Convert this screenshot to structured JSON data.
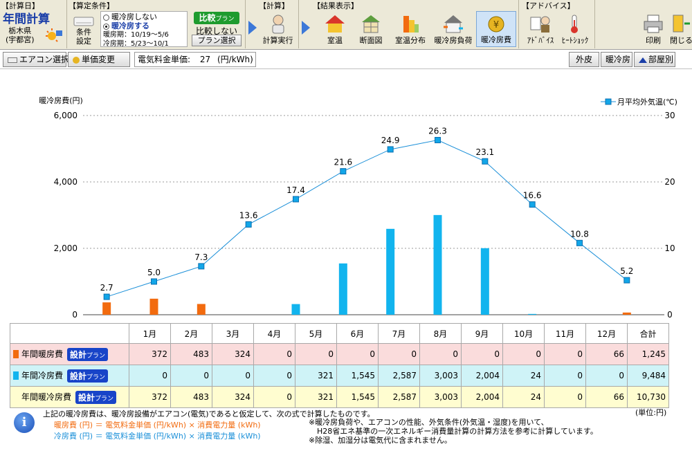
{
  "toolbar": {
    "calc_day": {
      "header": "【計算日】",
      "title": "年間計算",
      "location": "栃木県\n(宇都宮)"
    },
    "conditions": {
      "header": "【算定条件】",
      "settings_label": "条件\n設定",
      "opt_off": "暖冷房しない",
      "opt_on": "暖冷房する",
      "heating_period": "暖房期：10/19～5/6",
      "cooling_period": "冷房期：5/23～10/1",
      "compare_badge": "比較",
      "compare_badge_small": "プラン",
      "compare_off": "比較しない",
      "plan_select": "プラン選択"
    },
    "calc": {
      "header": "【計算】",
      "run_label": "計算実行"
    },
    "results": {
      "header": "【結果表示】",
      "buttons": [
        "室温",
        "断面図",
        "室温分布",
        "暖冷房負荷",
        "暖冷房費"
      ]
    },
    "advice": {
      "header": "【アドバイス】",
      "buttons": [
        "ｱﾄﾞﾊﾞｲｽ",
        "ﾋｰﾄｼｮｯｸ"
      ]
    },
    "print_label": "印刷",
    "close_label": "閉じる"
  },
  "subbar": {
    "ac_select": "エアコン選択",
    "unit_change": "単価変更",
    "unit_price_label": "電気料金単価:",
    "unit_price_value": "27",
    "unit_price_unit": "(円/kWh)",
    "tabs": [
      "外皮",
      "暖冷房",
      "部屋別"
    ]
  },
  "chart_data": {
    "type": "bar",
    "categories": [
      "1月",
      "2月",
      "3月",
      "4月",
      "5月",
      "6月",
      "7月",
      "8月",
      "9月",
      "10月",
      "11月",
      "12月"
    ],
    "series": [
      {
        "name": "年間暖房費",
        "color": "#f26b0f",
        "values": [
          372,
          483,
          324,
          0,
          0,
          0,
          0,
          0,
          0,
          0,
          0,
          66
        ]
      },
      {
        "name": "年間冷房費",
        "color": "#12b4ee",
        "values": [
          0,
          0,
          0,
          0,
          321,
          1545,
          2587,
          3003,
          2004,
          24,
          0,
          0
        ]
      }
    ],
    "line": {
      "name": "月平均外気温(℃)",
      "color": "#1a8fd8",
      "values": [
        2.7,
        5.0,
        7.3,
        13.6,
        17.4,
        21.6,
        24.9,
        26.3,
        23.1,
        16.6,
        10.8,
        5.2
      ]
    },
    "ylabel": "暖冷房費(円)",
    "y2label": "月平均外気温(℃)",
    "ylim": [
      0,
      6000
    ],
    "y2lim": [
      0,
      30
    ],
    "yticks": [
      "0",
      "2,000",
      "4,000",
      "6,000"
    ],
    "y2ticks": [
      "0",
      "10",
      "20",
      "30"
    ],
    "grid": true
  },
  "table": {
    "header": [
      "1月",
      "2月",
      "3月",
      "4月",
      "5月",
      "6月",
      "7月",
      "8月",
      "9月",
      "10月",
      "11月",
      "12月",
      "合計"
    ],
    "plan_label": "設計",
    "plan_label_small": "プラン",
    "rows": [
      {
        "label": "年間暖房費",
        "values": [
          "372",
          "483",
          "324",
          "0",
          "0",
          "0",
          "0",
          "0",
          "0",
          "0",
          "0",
          "66",
          "1,245"
        ]
      },
      {
        "label": "年間冷房費",
        "values": [
          "0",
          "0",
          "0",
          "0",
          "321",
          "1,545",
          "2,587",
          "3,003",
          "2,004",
          "24",
          "0",
          "0",
          "9,484"
        ]
      },
      {
        "label": "年間暖冷房費",
        "values": [
          "372",
          "483",
          "324",
          "0",
          "321",
          "1,545",
          "2,587",
          "3,003",
          "2,004",
          "24",
          "0",
          "66",
          "10,730"
        ]
      }
    ]
  },
  "footer": {
    "note_main": "上記の暖冷房費は、暖冷房設備がエアコン(電気)であると仮定して、次の式で計算したものです。",
    "formula_heat": "暖房費 (円) ＝ 電気料金単価 (円/kWh) × 消費電力量 (kWh)",
    "formula_cool": "冷房費 (円) ＝ 電気料金単価 (円/kWh) × 消費電力量 (kWh)",
    "note_1": "※暖冷房負荷や、エアコンの性能、外気条件(外気温・湿度)を用いて、",
    "note_1b": "H28省エネ基準の一次エネルギー消費量計算の計算方法を参考に計算しています。",
    "note_2": "※除湿、加湿分は電気代に含まれません。",
    "unit_note": "(単位:円)"
  }
}
